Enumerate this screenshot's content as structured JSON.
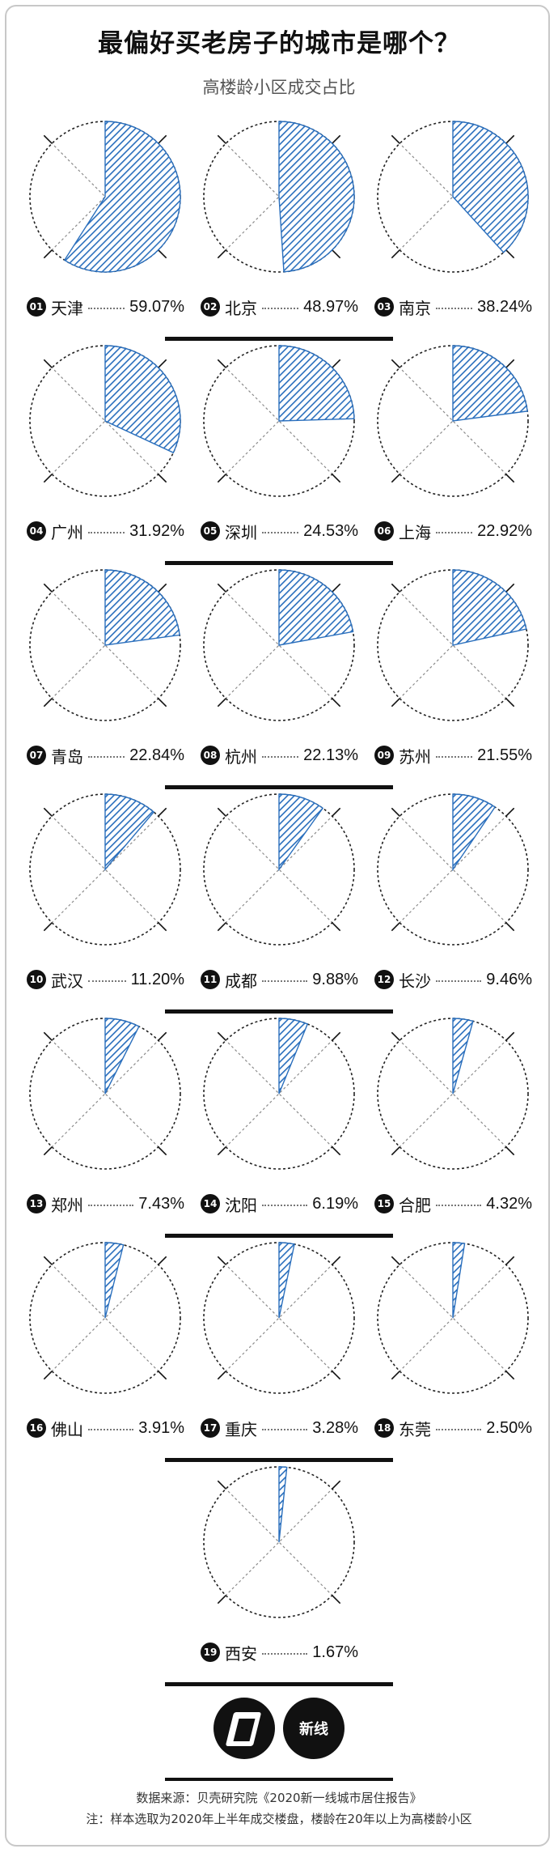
{
  "title": "最偏好买老房子的城市是哪个？",
  "subtitle": "高楼龄小区成交占比",
  "footer": {
    "source": "数据来源：贝壳研究院《2020新一线城市居住报告》",
    "note": "注：样本选取为2020年上半年成交楼盘，楼龄在20年以上为高楼龄小区"
  },
  "logos": {
    "brand_text": "新线"
  },
  "colors": {
    "fill": "#2a6fbd",
    "background": "#ffffff",
    "ink": "#111111"
  },
  "chart_data": {
    "type": "pie",
    "series": [
      {
        "rank": "01",
        "city": "天津",
        "value": 59.07,
        "label": "59.07%"
      },
      {
        "rank": "02",
        "city": "北京",
        "value": 48.97,
        "label": "48.97%"
      },
      {
        "rank": "03",
        "city": "南京",
        "value": 38.24,
        "label": "38.24%"
      },
      {
        "rank": "04",
        "city": "广州",
        "value": 31.92,
        "label": "31.92%"
      },
      {
        "rank": "05",
        "city": "深圳",
        "value": 24.53,
        "label": "24.53%"
      },
      {
        "rank": "06",
        "city": "上海",
        "value": 22.92,
        "label": "22.92%"
      },
      {
        "rank": "07",
        "city": "青岛",
        "value": 22.84,
        "label": "22.84%"
      },
      {
        "rank": "08",
        "city": "杭州",
        "value": 22.13,
        "label": "22.13%"
      },
      {
        "rank": "09",
        "city": "苏州",
        "value": 21.55,
        "label": "21.55%"
      },
      {
        "rank": "10",
        "city": "武汉",
        "value": 11.2,
        "label": "11.20%"
      },
      {
        "rank": "11",
        "city": "成都",
        "value": 9.88,
        "label": "9.88%"
      },
      {
        "rank": "12",
        "city": "长沙",
        "value": 9.46,
        "label": "9.46%"
      },
      {
        "rank": "13",
        "city": "郑州",
        "value": 7.43,
        "label": "7.43%"
      },
      {
        "rank": "14",
        "city": "沈阳",
        "value": 6.19,
        "label": "6.19%"
      },
      {
        "rank": "15",
        "city": "合肥",
        "value": 4.32,
        "label": "4.32%"
      },
      {
        "rank": "16",
        "city": "佛山",
        "value": 3.91,
        "label": "3.91%"
      },
      {
        "rank": "17",
        "city": "重庆",
        "value": 3.28,
        "label": "3.28%"
      },
      {
        "rank": "18",
        "city": "东莞",
        "value": 2.5,
        "label": "2.50%"
      },
      {
        "rank": "19",
        "city": "西安",
        "value": 1.67,
        "label": "1.67%"
      }
    ]
  }
}
